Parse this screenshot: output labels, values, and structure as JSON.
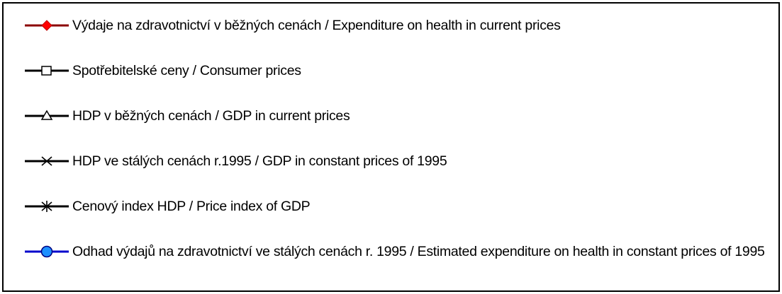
{
  "legend": {
    "items": [
      {
        "label": "Výdaje na zdravotnictví v běžných cenách / Expenditure on health in current prices"
      },
      {
        "label": "Spotřebitelské ceny / Consumer prices"
      },
      {
        "label": "HDP v běžných cenách / GDP in current prices"
      },
      {
        "label": "HDP ve stálých cenách r.1995 / GDP in constant prices of 1995"
      },
      {
        "label": "Cenový index HDP / Price index of GDP"
      },
      {
        "label": "Odhad výdajů na zdravotnictví ve stálých cenách r. 1995 / Estimated expenditure on health in constant prices of 1995"
      }
    ]
  }
}
